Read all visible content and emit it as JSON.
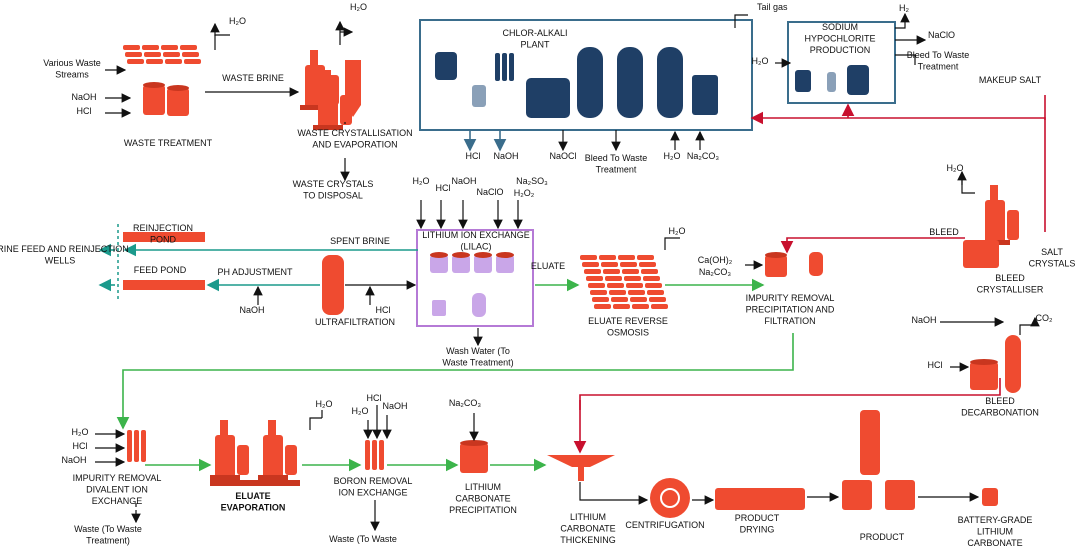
{
  "labels": [
    [
      "H₂O"
    ],
    [
      "H₂O"
    ],
    [
      "Various Waste",
      "Streams"
    ],
    [
      "NaOH"
    ],
    [
      "HCl"
    ],
    [
      "WASTE TREATMENT"
    ],
    [
      "WASTE BRINE"
    ],
    [
      "WASTE CRYSTALLISATION",
      "AND EVAPORATION"
    ],
    [
      "WASTE CRYSTALS",
      "TO DISPOSAL"
    ],
    [
      "CHLOR-ALKALI",
      "PLANT"
    ],
    [
      "Tail gas"
    ],
    [
      "SODIUM",
      "HYPOCHLORITE",
      "PRODUCTION"
    ],
    [
      "H₂"
    ],
    [
      "NaClO"
    ],
    [
      "Bleed To Waste",
      "Treatment"
    ],
    [
      "H₂O"
    ],
    [
      "MAKEUP SALT"
    ],
    [
      "HCl"
    ],
    [
      "NaOH"
    ],
    [
      "NaOCl"
    ],
    [
      "Bleed To Waste",
      "Treatment"
    ],
    [
      "H₂O"
    ],
    [
      "Na₂CO₃"
    ],
    [
      "H₂O"
    ],
    [
      "H₂O"
    ],
    [
      "HCl"
    ],
    [
      "NaOH"
    ],
    [
      "NaClO"
    ],
    [
      "Na₂SO₃"
    ],
    [
      "H₂O₂"
    ],
    [
      "REINJECTION",
      "POND"
    ],
    [
      "BRINE FEED AND REINJECTION",
      "WELLS"
    ],
    [
      "SPENT BRINE"
    ],
    [
      "LITHIUM ION EXCHANGE",
      "(LILAC)"
    ],
    [
      "H₂O"
    ],
    [
      "BLEED"
    ],
    [
      "SALT",
      "CRYSTALS"
    ],
    [
      "FEED POND"
    ],
    [
      "PH ADJUSTMENT"
    ],
    [
      "ELUATE"
    ],
    [
      "Ca(OH)₂"
    ],
    [
      "Na₂CO₃"
    ],
    [
      "BLEED",
      "CRYSTALLISER"
    ],
    [
      "IMPURITY REMOVAL",
      "PRECIPITATION AND",
      "FILTRATION"
    ],
    [
      "NaOH"
    ],
    [
      "HCl"
    ],
    [
      "ULTRAFILTRATION"
    ],
    [
      "ELUATE REVERSE",
      "OSMOSIS"
    ],
    [
      "NaOH"
    ],
    [
      "CO₂"
    ],
    [
      "Wash Water (To",
      "Waste Treatment)"
    ],
    [
      "HCl"
    ],
    [
      "BLEED",
      "DECARBONATION"
    ],
    [
      "H₂O"
    ],
    [
      "HCl"
    ],
    [
      "H₂O"
    ],
    [
      "NaOH"
    ],
    [
      "Na₂CO₃"
    ],
    [
      "H₂O"
    ],
    [
      "HCl"
    ],
    [
      "NaOH"
    ],
    [
      "IMPURITY REMOVAL",
      "DIVALENT ION",
      "EXCHANGE"
    ],
    [
      "ELUATE",
      "EVAPORATION"
    ],
    [
      "BORON REMOVAL",
      "ION EXCHANGE"
    ],
    [
      "LITHIUM",
      "CARBONATE",
      "PRECIPITATION"
    ],
    [
      "LITHIUM",
      "CARBONATE",
      "THICKENING"
    ],
    [
      "CENTRIFUGATION"
    ],
    [
      "PRODUCT",
      "DRYING"
    ],
    [
      "PRODUCT"
    ],
    [
      "BATTERY-GRADE",
      "LITHIUM",
      "CARBONATE"
    ],
    [
      "Waste (To Waste",
      "Treatment)"
    ],
    [
      "Waste (To Waste"
    ]
  ]
}
